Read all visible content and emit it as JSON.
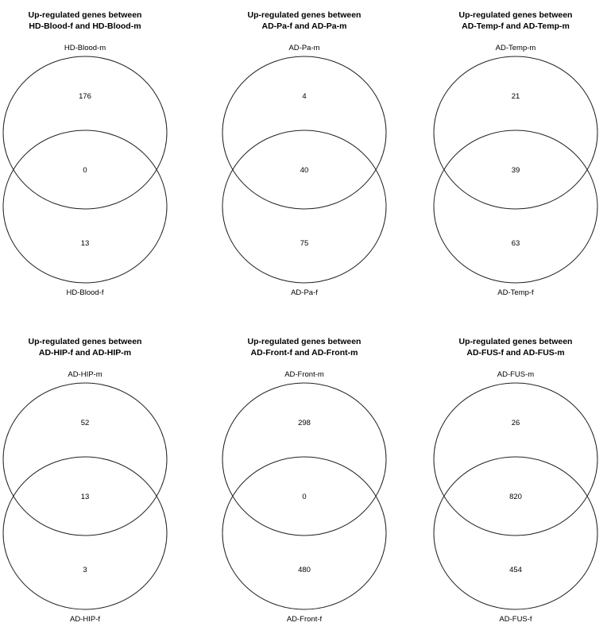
{
  "panels": [
    {
      "title_line1": "Up-regulated genes between",
      "title_line2": "HD-Blood-f and HD-Blood-m",
      "top_set": "HD-Blood-m",
      "bottom_set": "HD-Blood-f",
      "top_only": "176",
      "overlap": "0",
      "bottom_only": "13"
    },
    {
      "title_line1": "Up-regulated genes between",
      "title_line2": "AD-Pa-f and AD-Pa-m",
      "top_set": "AD-Pa-m",
      "bottom_set": "AD-Pa-f",
      "top_only": "4",
      "overlap": "40",
      "bottom_only": "75"
    },
    {
      "title_line1": "Up-regulated genes between",
      "title_line2": "AD-Temp-f and AD-Temp-m",
      "top_set": "AD-Temp-m",
      "bottom_set": "AD-Temp-f",
      "top_only": "21",
      "overlap": "39",
      "bottom_only": "63"
    },
    {
      "title_line1": "Up-regulated genes between",
      "title_line2": "AD-HIP-f and AD-HIP-m",
      "top_set": "AD-HIP-m",
      "bottom_set": "AD-HIP-f",
      "top_only": "52",
      "overlap": "13",
      "bottom_only": "3"
    },
    {
      "title_line1": "Up-regulated genes between",
      "title_line2": "AD-Front-f and AD-Front-m",
      "top_set": "AD-Front-m",
      "bottom_set": "AD-Front-f",
      "top_only": "298",
      "overlap": "0",
      "bottom_only": "480"
    },
    {
      "title_line1": "Up-regulated genes between",
      "title_line2": "AD-FUS-f and AD-FUS-m",
      "top_set": "AD-FUS-m",
      "bottom_set": "AD-FUS-f",
      "top_only": "26",
      "overlap": "820",
      "bottom_only": "454"
    }
  ]
}
